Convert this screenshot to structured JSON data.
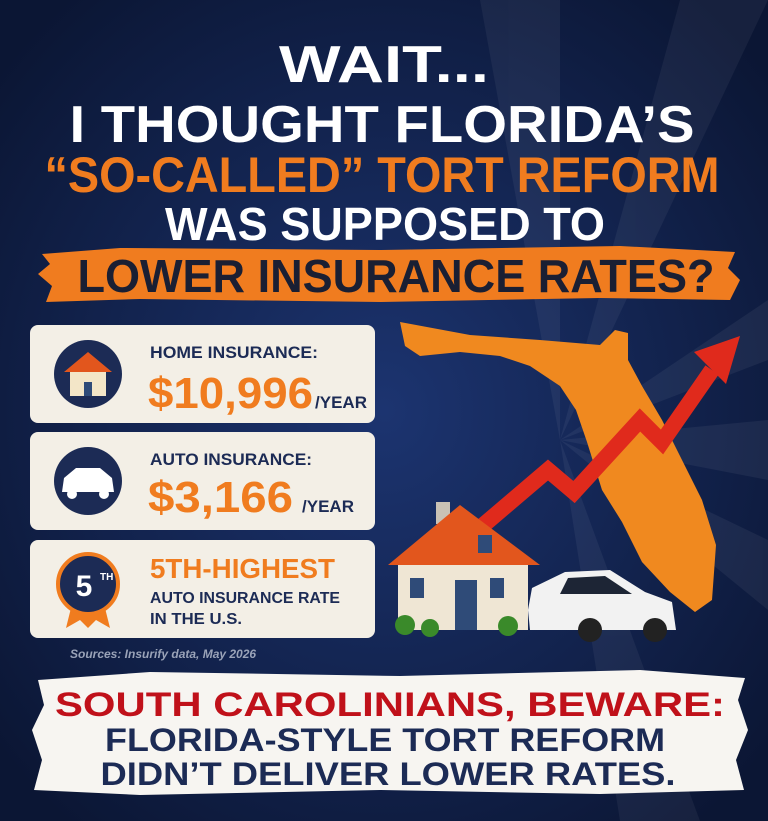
{
  "headline": {
    "line1": "WAIT...",
    "line2": "I THOUGHT FLORIDA’S",
    "line3": "“SO-CALLED” TORT REFORM",
    "line4": "WAS SUPPOSED TO",
    "banner": "LOWER INSURANCE RATES?"
  },
  "cards": [
    {
      "label": "HOME INSURANCE:",
      "value": "$10,996",
      "unit": "/YEAR"
    },
    {
      "label": "AUTO INSURANCE:",
      "value": "$3,166",
      "unit": "/YEAR"
    },
    {
      "badge_number": "5",
      "badge_suffix": "TH",
      "value": "5TH-HIGHEST",
      "line1": "AUTO INSURANCE RATE",
      "line2": "IN THE U.S."
    }
  ],
  "source": "Sources: Insurify data, May 2026",
  "footer": {
    "line1": "SOUTH CAROLINIANS, BEWARE:",
    "line2": "FLORIDA-STYLE TORT REFORM",
    "line3": "DIDN’T DELIVER LOWER RATES."
  }
}
